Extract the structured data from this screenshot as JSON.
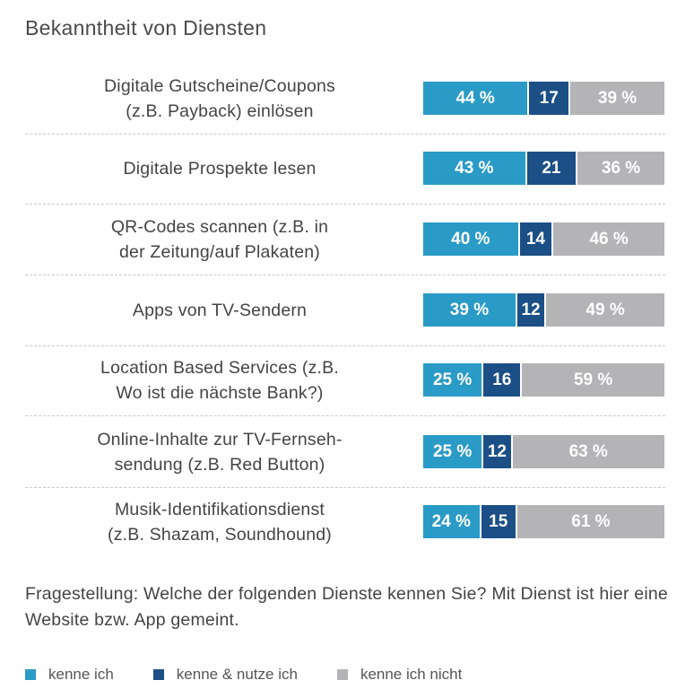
{
  "title": "Bekanntheit von Diensten",
  "question": "Fragestellung: Welche der folgenden Dienste kennen Sie? Mit Dienst ist hier eine Website bzw. App gemeint.",
  "colors": {
    "kenne": "#2a9ac6",
    "nutze": "#1b4f86",
    "nicht": "#b4b4b6"
  },
  "chart_data": {
    "type": "bar",
    "stacked": true,
    "orientation": "horizontal",
    "title": "Bekanntheit von Diensten",
    "categories": [
      [
        "Digitale Gutscheine/Coupons",
        "(z.B. Payback) einlösen"
      ],
      [
        "Digitale Prospekte lesen"
      ],
      [
        "QR-Codes scannen (z.B. in",
        "der Zeitung/auf Plakaten)"
      ],
      [
        "Apps von TV-Sendern"
      ],
      [
        "Location Based Services (z.B.",
        "Wo ist die nächste Bank?)"
      ],
      [
        "Online-Inhalte zur TV-Fernseh-",
        "sendung (z.B. Red Button)"
      ],
      [
        "Musik-Identifikationsdienst",
        "(z.B. Shazam, Soundhound)"
      ]
    ],
    "series": [
      {
        "name": "kenne ich",
        "values": [
          44,
          43,
          40,
          39,
          25,
          25,
          24
        ],
        "labels": [
          "44 %",
          "43 %",
          "40 %",
          "39 %",
          "25 %",
          "25 %",
          "24 %"
        ]
      },
      {
        "name": "kenne & nutze ich",
        "values": [
          17,
          21,
          14,
          12,
          16,
          12,
          15
        ],
        "labels": [
          "17",
          "21",
          "14",
          "12",
          "16",
          "12",
          "15"
        ]
      },
      {
        "name": "kenne ich nicht",
        "values": [
          39,
          36,
          46,
          49,
          59,
          63,
          61
        ],
        "labels": [
          "39 %",
          "36 %",
          "46 %",
          "49 %",
          "59 %",
          "63 %",
          "61 %"
        ]
      }
    ],
    "xlim": [
      0,
      100
    ],
    "legend": "bottom-left"
  }
}
